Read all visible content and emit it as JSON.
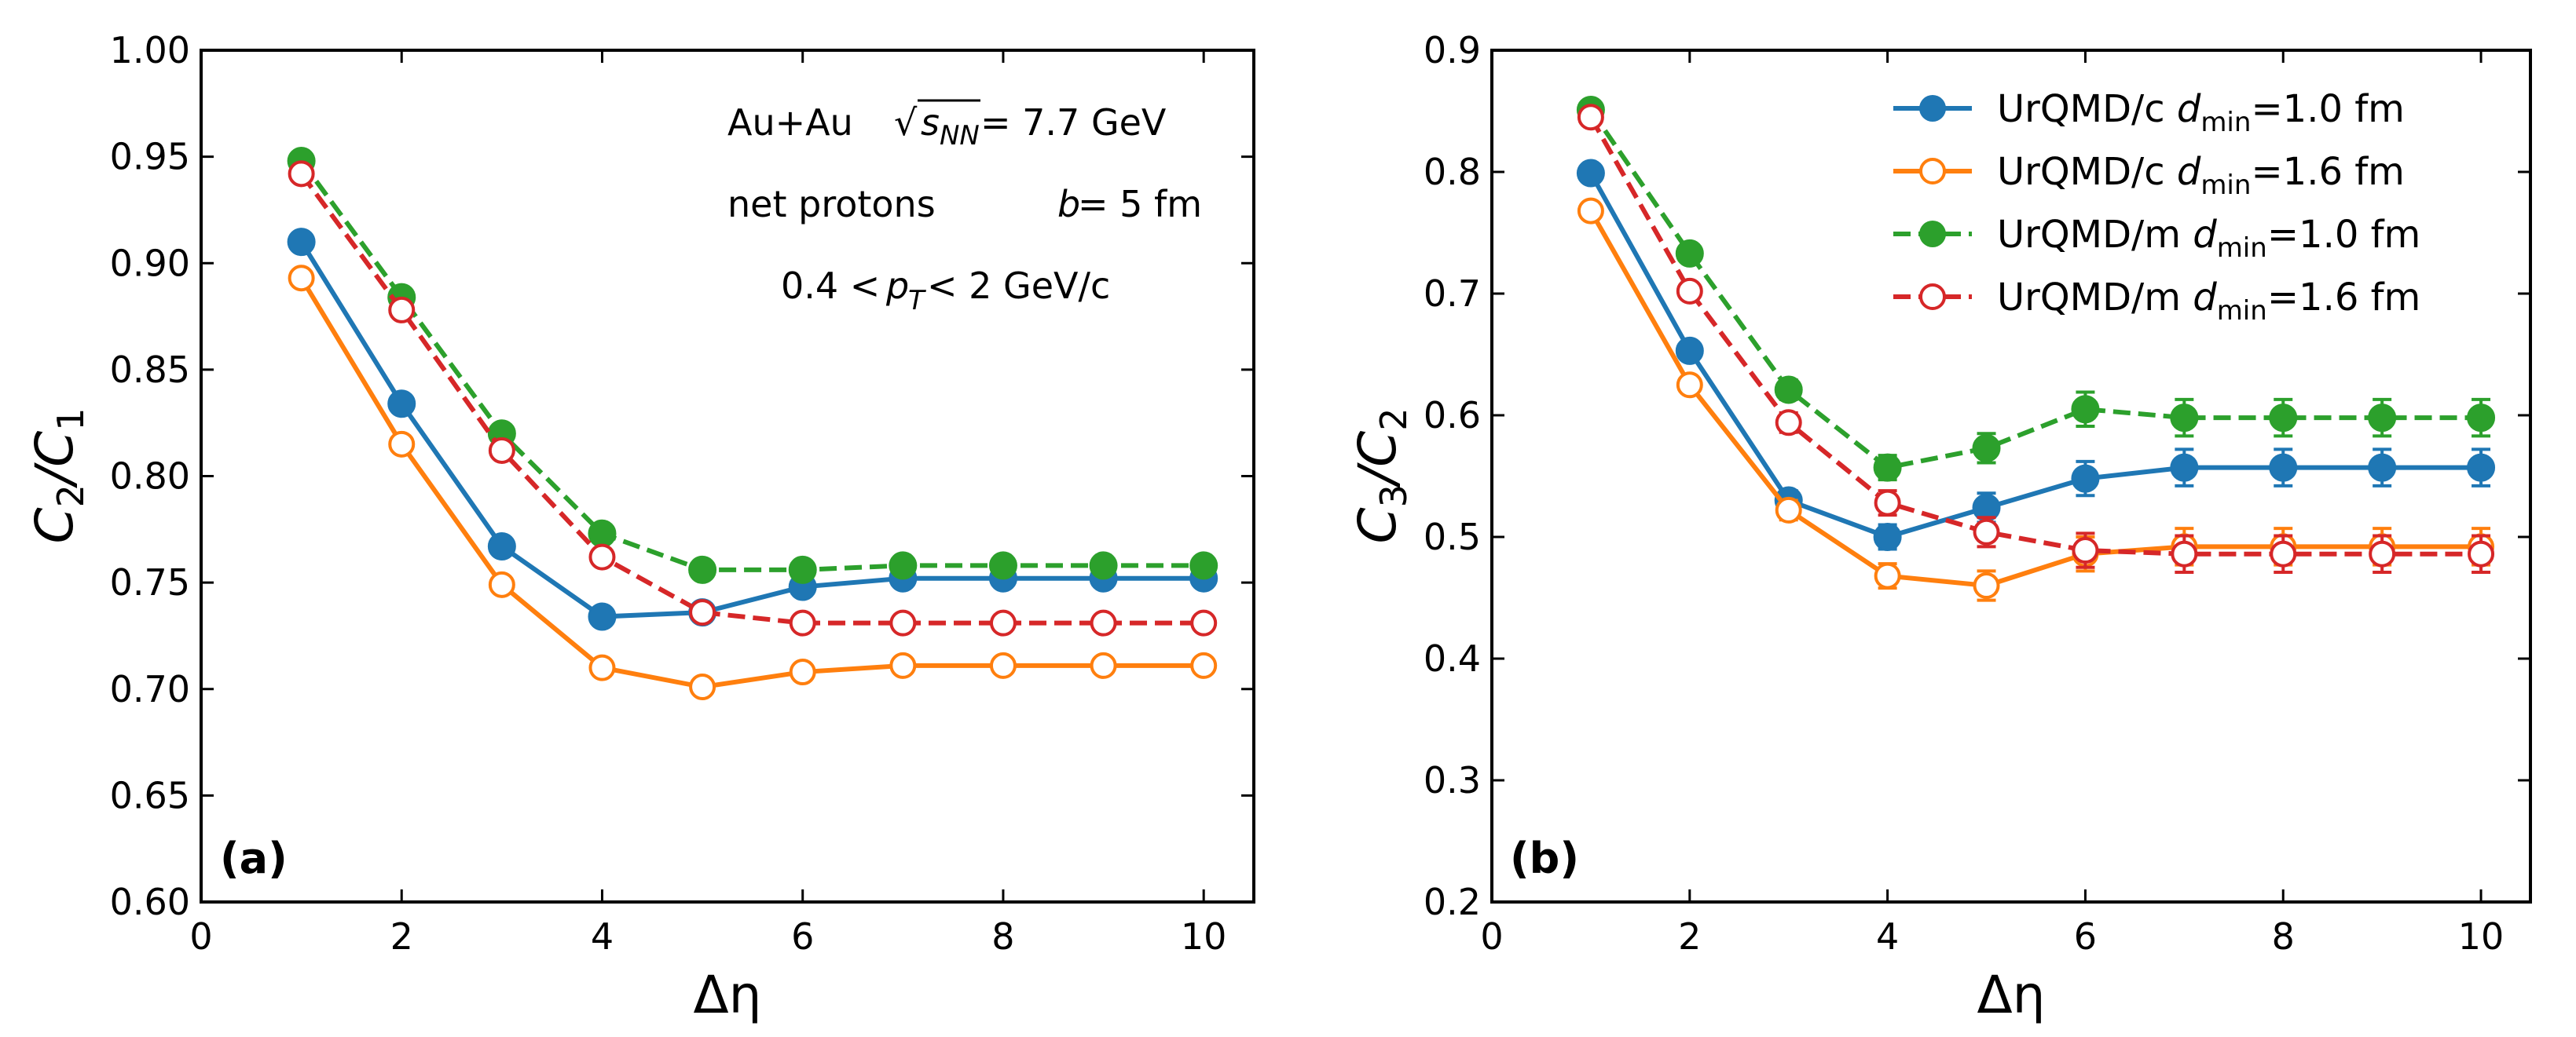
{
  "chart_data": [
    {
      "type": "line",
      "panel_label": "(a)",
      "xlabel": "Δη",
      "ylabel": "C2/C1",
      "ylabel_parts": {
        "main": "C",
        "sub1": "2",
        "slash": "/C",
        "sub2": "1"
      },
      "xlim": [
        0,
        10.5
      ],
      "ylim": [
        0.6,
        1.0
      ],
      "xticks": [
        0,
        2,
        4,
        6,
        8,
        10
      ],
      "yticks": [
        0.6,
        0.65,
        0.7,
        0.75,
        0.8,
        0.85,
        0.9,
        0.95,
        1.0
      ],
      "ytick_labels": [
        "0.60",
        "0.65",
        "0.70",
        "0.75",
        "0.80",
        "0.85",
        "0.90",
        "0.95",
        "1.00"
      ],
      "annotations": [
        {
          "id": "system",
          "text": "Au+Au"
        },
        {
          "id": "energy_prefix",
          "text": "√"
        },
        {
          "id": "energy_var",
          "text": "s"
        },
        {
          "id": "energy_sub",
          "text": "NN"
        },
        {
          "id": "energy_value",
          "text": " = 7.7 GeV"
        },
        {
          "id": "particle",
          "text": "net protons"
        },
        {
          "id": "impact_var",
          "text": "b"
        },
        {
          "id": "impact_value",
          "text": " = 5 fm"
        },
        {
          "id": "pt_low",
          "text": "0.4 < "
        },
        {
          "id": "pt_var",
          "text": "p"
        },
        {
          "id": "pt_sub",
          "text": "T"
        },
        {
          "id": "pt_high",
          "text": " < 2  GeV/c"
        }
      ],
      "x": [
        1,
        2,
        3,
        4,
        5,
        6,
        7,
        8,
        9,
        10
      ],
      "series": [
        {
          "name": "UrQMD/c  dmin=1.0 fm",
          "color": "#1f77b4",
          "marker": "filled",
          "linestyle": "solid",
          "values": [
            0.91,
            0.834,
            0.767,
            0.734,
            0.736,
            0.748,
            0.752,
            0.752,
            0.752,
            0.752
          ],
          "errors": [
            0.003,
            0.003,
            0.003,
            0.003,
            0.003,
            0.003,
            0.003,
            0.003,
            0.003,
            0.003
          ]
        },
        {
          "name": "UrQMD/c  dmin=1.6 fm",
          "color": "#ff7f0e",
          "marker": "open",
          "linestyle": "solid",
          "values": [
            0.893,
            0.815,
            0.749,
            0.71,
            0.701,
            0.708,
            0.711,
            0.711,
            0.711,
            0.711
          ],
          "errors": [
            0.003,
            0.003,
            0.003,
            0.003,
            0.003,
            0.003,
            0.003,
            0.003,
            0.003,
            0.003
          ]
        },
        {
          "name": "UrQMD/m  dmin=1.0 fm",
          "color": "#2ca02c",
          "marker": "filled",
          "linestyle": "dashed",
          "values": [
            0.948,
            0.884,
            0.82,
            0.773,
            0.756,
            0.756,
            0.758,
            0.758,
            0.758,
            0.758
          ],
          "errors": [
            0.003,
            0.003,
            0.003,
            0.003,
            0.003,
            0.003,
            0.003,
            0.003,
            0.003,
            0.003
          ]
        },
        {
          "name": "UrQMD/m  dmin=1.6 fm",
          "color": "#d62728",
          "marker": "open",
          "linestyle": "dashed",
          "values": [
            0.942,
            0.878,
            0.812,
            0.762,
            0.736,
            0.731,
            0.731,
            0.731,
            0.731,
            0.731
          ],
          "errors": [
            0.003,
            0.003,
            0.003,
            0.003,
            0.003,
            0.003,
            0.003,
            0.003,
            0.003,
            0.003
          ]
        }
      ]
    },
    {
      "type": "line",
      "panel_label": "(b)",
      "xlabel": "Δη",
      "ylabel": "C3/C2",
      "ylabel_parts": {
        "main": "C",
        "sub1": "3",
        "slash": "/C",
        "sub2": "2"
      },
      "xlim": [
        0,
        10.5
      ],
      "ylim": [
        0.2,
        0.9
      ],
      "xticks": [
        0,
        2,
        4,
        6,
        8,
        10
      ],
      "yticks": [
        0.2,
        0.3,
        0.4,
        0.5,
        0.6,
        0.7,
        0.8,
        0.9
      ],
      "ytick_labels": [
        "0.2",
        "0.3",
        "0.4",
        "0.5",
        "0.6",
        "0.7",
        "0.8",
        "0.9"
      ],
      "legend": {
        "placement": "top-right",
        "entries": [
          {
            "model": "UrQMD/c",
            "var": "d",
            "sub": "min",
            "value": "=1.0 fm"
          },
          {
            "model": "UrQMD/c",
            "var": "d",
            "sub": "min",
            "value": "=1.6 fm"
          },
          {
            "model": "UrQMD/m",
            "var": "d",
            "sub": "min",
            "value": "=1.0 fm"
          },
          {
            "model": "UrQMD/m",
            "var": "d",
            "sub": "min",
            "value": "=1.6 fm"
          }
        ]
      },
      "x": [
        1,
        2,
        3,
        4,
        5,
        6,
        7,
        8,
        9,
        10
      ],
      "series": [
        {
          "name": "UrQMD/c  dmin=1.0 fm",
          "color": "#1f77b4",
          "marker": "filled",
          "linestyle": "solid",
          "values": [
            0.799,
            0.653,
            0.53,
            0.5,
            0.524,
            0.548,
            0.557,
            0.557,
            0.557,
            0.557
          ],
          "errors": [
            0.005,
            0.006,
            0.008,
            0.01,
            0.012,
            0.014,
            0.015,
            0.015,
            0.015,
            0.015
          ]
        },
        {
          "name": "UrQMD/c  dmin=1.6 fm",
          "color": "#ff7f0e",
          "marker": "open",
          "linestyle": "solid",
          "values": [
            0.768,
            0.625,
            0.522,
            0.468,
            0.46,
            0.486,
            0.492,
            0.492,
            0.492,
            0.492
          ],
          "errors": [
            0.005,
            0.006,
            0.008,
            0.01,
            0.012,
            0.014,
            0.015,
            0.015,
            0.015,
            0.015
          ]
        },
        {
          "name": "UrQMD/m  dmin=1.0 fm",
          "color": "#2ca02c",
          "marker": "filled",
          "linestyle": "dashed",
          "values": [
            0.851,
            0.733,
            0.621,
            0.557,
            0.573,
            0.605,
            0.598,
            0.598,
            0.598,
            0.598
          ],
          "errors": [
            0.005,
            0.006,
            0.008,
            0.01,
            0.012,
            0.014,
            0.015,
            0.015,
            0.015,
            0.015
          ]
        },
        {
          "name": "UrQMD/m  dmin=1.6 fm",
          "color": "#d62728",
          "marker": "open",
          "linestyle": "dashed",
          "values": [
            0.845,
            0.702,
            0.594,
            0.528,
            0.504,
            0.489,
            0.486,
            0.486,
            0.486,
            0.486
          ],
          "errors": [
            0.005,
            0.006,
            0.008,
            0.01,
            0.012,
            0.014,
            0.015,
            0.015,
            0.015,
            0.015
          ]
        }
      ]
    }
  ]
}
